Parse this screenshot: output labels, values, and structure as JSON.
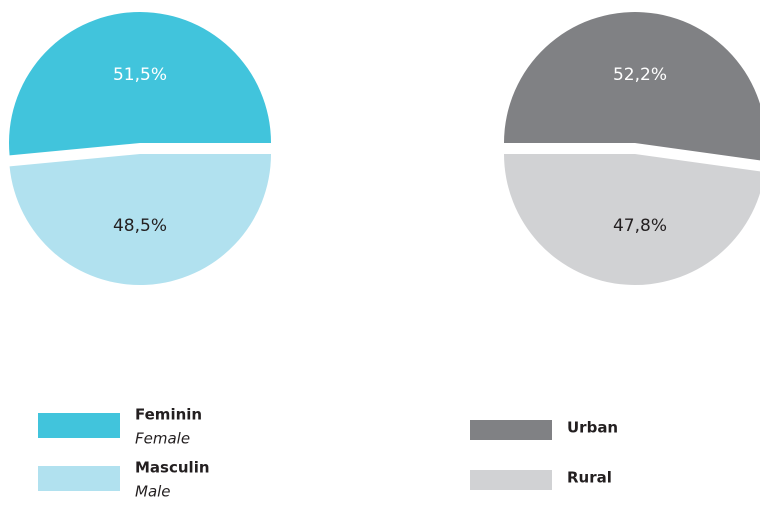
{
  "chart_data": [
    {
      "type": "pie",
      "categories": [
        "Feminin",
        "Masculin"
      ],
      "categories_en": [
        "Female",
        "Male"
      ],
      "values": [
        51.5,
        48.5
      ],
      "value_labels": [
        "51,5%",
        "48,5%"
      ],
      "colors": [
        "#41c4dc",
        "#b1e1ef"
      ]
    },
    {
      "type": "pie",
      "categories": [
        "Urban",
        "Rural"
      ],
      "values": [
        52.2,
        47.8
      ],
      "value_labels": [
        "52,2%",
        "47,8%"
      ],
      "colors": [
        "#808184",
        "#d1d2d4"
      ]
    }
  ]
}
